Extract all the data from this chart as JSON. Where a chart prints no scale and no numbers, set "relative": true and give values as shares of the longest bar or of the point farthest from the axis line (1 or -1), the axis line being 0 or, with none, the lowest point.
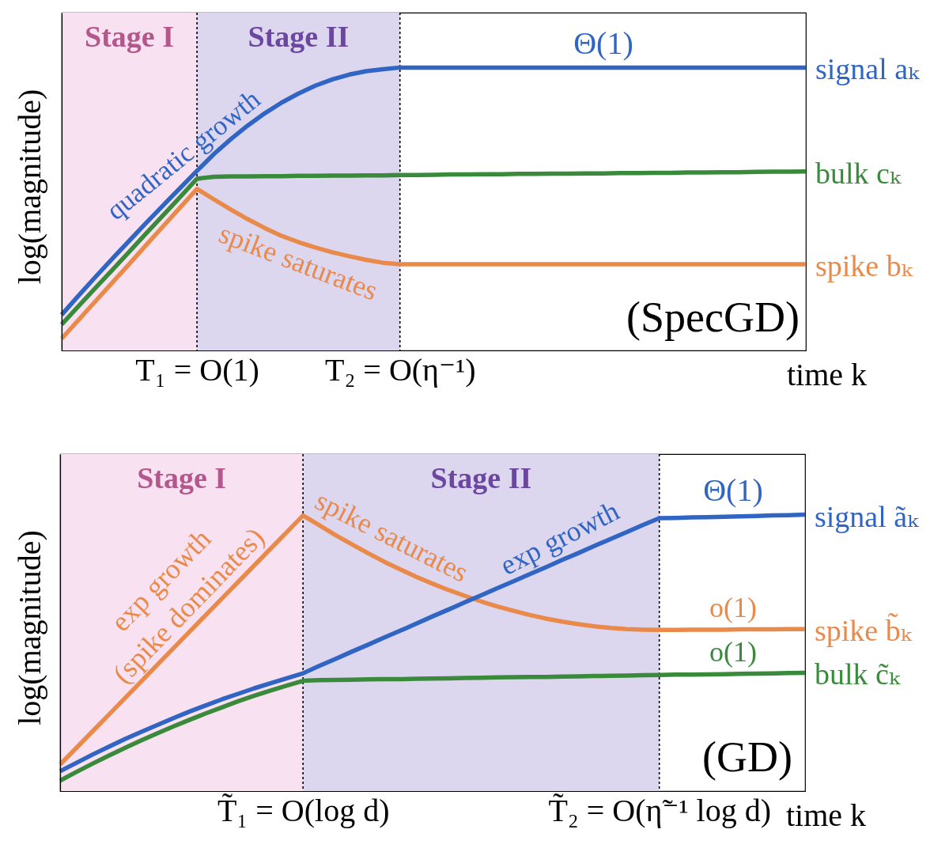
{
  "chart_data": [
    {
      "type": "line",
      "relative": true,
      "xlabel": "time k",
      "ylabel": "log(magnitude)",
      "categories": [
        null,
        null,
        null,
        null,
        null,
        null,
        null,
        null,
        "T₁ = O(1)",
        null,
        null,
        null,
        null,
        null,
        null,
        null,
        null,
        null,
        null,
        null,
        "T₂ = O(η⁻¹)",
        null,
        null,
        null,
        null,
        null,
        null,
        null,
        null,
        null,
        null,
        null,
        null,
        null,
        null,
        null,
        null,
        null,
        null,
        null,
        null,
        null,
        null,
        null,
        null
      ],
      "series": [
        {
          "name": "signal aₖ",
          "color": "#3065c3",
          "values": [
            0.126,
            0.194,
            0.26,
            0.325,
            0.388,
            0.451,
            0.513,
            0.574,
            0.635,
            0.694,
            0.747,
            0.795,
            0.838,
            0.876,
            0.908,
            0.936,
            0.958,
            0.975,
            0.987,
            0.994,
            1,
            1,
            1,
            1,
            1,
            1,
            1,
            1,
            1,
            1,
            1,
            1,
            1,
            1,
            1,
            1,
            1,
            1,
            1,
            1,
            1,
            1,
            1,
            1,
            1
          ]
        },
        {
          "name": "bulk cₖ",
          "color": "#3a8a3c",
          "values": [
            0.092,
            0.157,
            0.221,
            0.285,
            0.349,
            0.414,
            0.478,
            0.542,
            0.607,
            0.614,
            0.615,
            0.615,
            0.616,
            0.616,
            0.617,
            0.617,
            0.618,
            0.618,
            0.619,
            0.619,
            0.62,
            0.62,
            0.621,
            0.622,
            0.622,
            0.623,
            0.623,
            0.624,
            0.624,
            0.625,
            0.625,
            0.626,
            0.626,
            0.627,
            0.627,
            0.628,
            0.628,
            0.629,
            0.629,
            0.63,
            0.63,
            0.631,
            0.632,
            0.632,
            0.633
          ]
        },
        {
          "name": "spike bₖ",
          "color": "#e98a4b",
          "values": [
            0.042,
            0.108,
            0.174,
            0.24,
            0.306,
            0.373,
            0.439,
            0.505,
            0.571,
            0.534,
            0.498,
            0.464,
            0.433,
            0.405,
            0.383,
            0.364,
            0.347,
            0.333,
            0.32,
            0.31,
            0.305,
            0.305,
            0.305,
            0.305,
            0.305,
            0.305,
            0.305,
            0.305,
            0.305,
            0.305,
            0.305,
            0.305,
            0.305,
            0.305,
            0.305,
            0.305,
            0.305,
            0.305,
            0.305,
            0.305,
            0.305,
            0.305,
            0.305,
            0.305,
            0.305
          ]
        }
      ],
      "bands": [
        {
          "axis": "x",
          "from": "T₁ = O(1)",
          "to": "T₂ = O(η⁻¹)",
          "label": "Stage II",
          "color": "#dcd6ef"
        }
      ],
      "ref_lines": [
        {
          "axis": "x",
          "value": "T₁ = O(1)",
          "color": "#000000",
          "line_style": "dotted"
        },
        {
          "axis": "x",
          "value": "T₂ = O(η⁻¹)",
          "color": "#000000",
          "line_style": "dotted"
        }
      ],
      "annotations": [
        "Stage I",
        "quadratic growth",
        "spike saturates",
        "Θ(1)",
        "(SpecGD)"
      ]
    },
    {
      "type": "line",
      "relative": true,
      "xlabel": "time k",
      "ylabel": "log(magnitude)",
      "categories": [
        null,
        null,
        null,
        null,
        null,
        null,
        null,
        null,
        null,
        null,
        null,
        null,
        null,
        null,
        null,
        "T̃₁ = O(log d)",
        null,
        null,
        null,
        null,
        null,
        null,
        null,
        null,
        null,
        null,
        null,
        null,
        null,
        null,
        null,
        null,
        null,
        null,
        null,
        null,
        null,
        "T̃₂ = O(η̃⁻¹ log d)",
        null,
        null,
        null,
        null,
        null,
        null,
        null,
        null,
        null
      ],
      "series": [
        {
          "name": "signal ãₖ",
          "color": "#3065c3",
          "values": [
            0.072,
            0.102,
            0.132,
            0.16,
            0.188,
            0.214,
            0.239,
            0.264,
            0.288,
            0.31,
            0.332,
            0.352,
            0.372,
            0.39,
            0.408,
            0.426,
            0.453,
            0.478,
            0.504,
            0.529,
            0.555,
            0.58,
            0.606,
            0.632,
            0.657,
            0.683,
            0.708,
            0.734,
            0.759,
            0.785,
            0.81,
            0.836,
            0.861,
            0.887,
            0.912,
            0.937,
            0.963,
            0.987,
            0.988,
            0.99,
            0.991,
            0.992,
            0.994,
            0.995,
            0.997,
            0.998,
            1
          ]
        },
        {
          "name": "spike b̃ₖ",
          "color": "#e98a4b",
          "values": [
            0.096,
            0.156,
            0.216,
            0.276,
            0.336,
            0.396,
            0.457,
            0.517,
            0.577,
            0.637,
            0.697,
            0.757,
            0.817,
            0.877,
            0.937,
            0.997,
            0.962,
            0.926,
            0.893,
            0.861,
            0.83,
            0.802,
            0.775,
            0.75,
            0.727,
            0.706,
            0.686,
            0.668,
            0.652,
            0.637,
            0.624,
            0.613,
            0.604,
            0.596,
            0.59,
            0.586,
            0.584,
            0.583,
            0.583,
            0.584,
            0.584,
            0.584,
            0.585,
            0.585,
            0.585,
            0.586,
            0.586
          ]
        },
        {
          "name": "bulk c̃ₖ",
          "color": "#3a8a3c",
          "values": [
            0.038,
            0.069,
            0.099,
            0.128,
            0.156,
            0.183,
            0.209,
            0.234,
            0.258,
            0.281,
            0.303,
            0.325,
            0.345,
            0.364,
            0.382,
            0.399,
            0.401,
            0.402,
            0.403,
            0.404,
            0.405,
            0.405,
            0.406,
            0.407,
            0.408,
            0.409,
            0.41,
            0.411,
            0.412,
            0.413,
            0.413,
            0.414,
            0.415,
            0.416,
            0.417,
            0.418,
            0.419,
            0.42,
            0.421,
            0.421,
            0.422,
            0.423,
            0.424,
            0.425,
            0.426,
            0.427,
            0.428
          ]
        }
      ],
      "bands": [
        {
          "axis": "x",
          "from": "T̃₁ = O(log d)",
          "to": "T̃₂ = O(η̃⁻¹ log d)",
          "label": "Stage II",
          "color": "#dcd6ef"
        }
      ],
      "ref_lines": [
        {
          "axis": "x",
          "value": "T̃₁ = O(log d)",
          "color": "#000000",
          "line_style": "dotted"
        },
        {
          "axis": "x",
          "value": "T̃₂ = O(η̃⁻¹ log d)",
          "color": "#000000",
          "line_style": "dotted"
        }
      ],
      "annotations": [
        "Stage I",
        "exp growth",
        "(spike dominates)",
        "spike saturates",
        "exp growth",
        "Θ(1)",
        "o(1)",
        "o(1)",
        "(GD)"
      ]
    }
  ]
}
